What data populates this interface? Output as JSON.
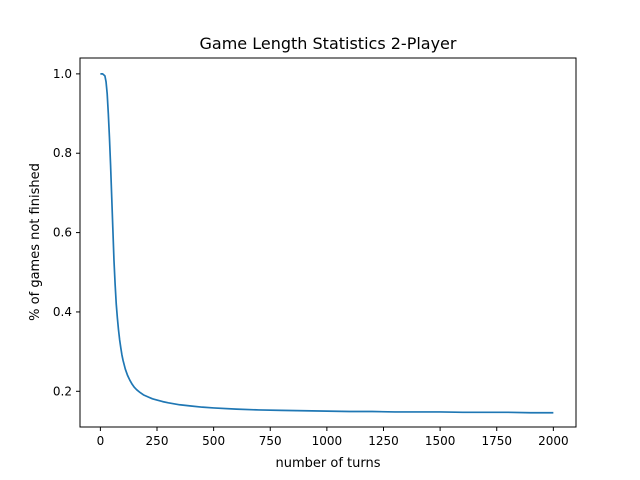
{
  "chart_data": {
    "type": "line",
    "title": "Game Length Statistics 2-Player",
    "xlabel": "number of turns",
    "ylabel": "% of games not finished",
    "xlim": [
      -90,
      2100
    ],
    "ylim": [
      0.11,
      1.04
    ],
    "xticks": [
      0,
      250,
      500,
      750,
      1000,
      1250,
      1500,
      1750,
      2000
    ],
    "xtick_labels": [
      "0",
      "250",
      "500",
      "750",
      "1000",
      "1250",
      "1500",
      "1750",
      "2000"
    ],
    "yticks": [
      0.2,
      0.4,
      0.6,
      0.8,
      1.0
    ],
    "ytick_labels": [
      "0.2",
      "0.4",
      "0.6",
      "0.8",
      "1.0"
    ],
    "grid": false,
    "series": [
      {
        "color": "#1f77b4",
        "x": [
          0,
          10,
          20,
          25,
          30,
          35,
          40,
          45,
          50,
          55,
          60,
          65,
          70,
          75,
          80,
          85,
          90,
          95,
          100,
          110,
          120,
          130,
          140,
          150,
          160,
          175,
          190,
          210,
          230,
          250,
          275,
          300,
          350,
          400,
          450,
          500,
          600,
          700,
          800,
          900,
          1000,
          1100,
          1200,
          1300,
          1400,
          1500,
          1600,
          1700,
          1800,
          1900,
          2000
        ],
        "y": [
          1.0,
          1.0,
          0.995,
          0.98,
          0.95,
          0.9,
          0.84,
          0.77,
          0.69,
          0.61,
          0.53,
          0.47,
          0.42,
          0.385,
          0.355,
          0.33,
          0.31,
          0.292,
          0.278,
          0.256,
          0.24,
          0.228,
          0.218,
          0.21,
          0.204,
          0.197,
          0.191,
          0.186,
          0.181,
          0.178,
          0.174,
          0.171,
          0.166,
          0.163,
          0.16,
          0.158,
          0.155,
          0.153,
          0.152,
          0.151,
          0.15,
          0.149,
          0.149,
          0.148,
          0.148,
          0.148,
          0.147,
          0.147,
          0.147,
          0.146,
          0.146
        ]
      }
    ]
  }
}
